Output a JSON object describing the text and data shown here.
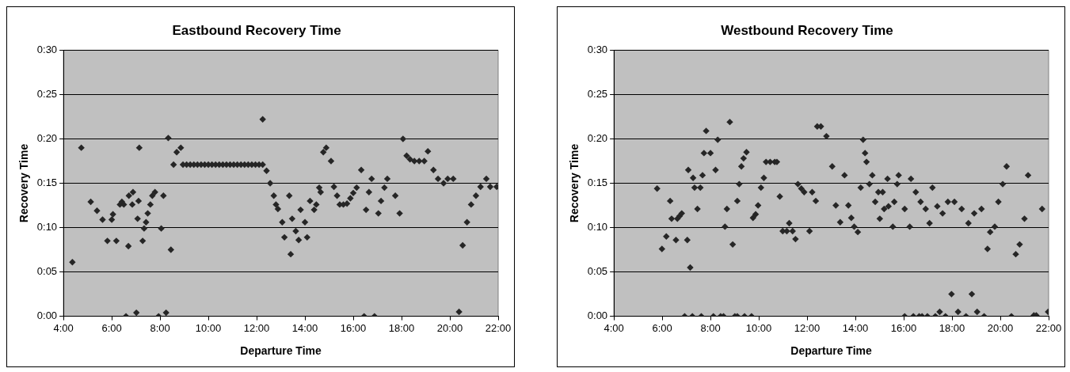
{
  "chart_data": [
    {
      "type": "scatter",
      "title": "Eastbound Recovery Time",
      "xlabel": "Departure Time",
      "ylabel": "Recovery Time",
      "marker": "diamond",
      "grid": "y",
      "legend": false,
      "xlim": [
        4,
        22
      ],
      "xticks": [
        {
          "value": 4,
          "label": "4:00"
        },
        {
          "value": 6,
          "label": "6:00"
        },
        {
          "value": 8,
          "label": "8:00"
        },
        {
          "value": 10,
          "label": "10:00"
        },
        {
          "value": 12,
          "label": "12:00"
        },
        {
          "value": 14,
          "label": "14:00"
        },
        {
          "value": 16,
          "label": "16:00"
        },
        {
          "value": 18,
          "label": "18:00"
        },
        {
          "value": 20,
          "label": "20:00"
        },
        {
          "value": 22,
          "label": "22:00"
        }
      ],
      "ylim": [
        0,
        30
      ],
      "yticks": [
        {
          "value": 0,
          "label": "0:00"
        },
        {
          "value": 5,
          "label": "0:05"
        },
        {
          "value": 10,
          "label": "0:10"
        },
        {
          "value": 15,
          "label": "0:15"
        },
        {
          "value": 20,
          "label": "0:20"
        },
        {
          "value": 25,
          "label": "0:25"
        },
        {
          "value": 30,
          "label": "0:30"
        }
      ],
      "series": [
        {
          "color": "#262626",
          "x": [
            4.37,
            4.74,
            5.13,
            5.39,
            5.62,
            5.82,
            6.0,
            6.05,
            6.19,
            6.34,
            6.42,
            6.5,
            6.59,
            6.69,
            6.71,
            6.88,
            6.85,
            7.02,
            7.07,
            7.11,
            7.14,
            7.28,
            7.34,
            7.42,
            7.49,
            7.6,
            7.68,
            7.79,
            7.94,
            8.05,
            8.14,
            8.25,
            8.34,
            8.45,
            8.56,
            8.69,
            8.86,
            8.95,
            9.1,
            9.25,
            9.4,
            9.55,
            9.7,
            9.85,
            10.0,
            10.15,
            10.3,
            10.45,
            10.6,
            10.75,
            10.9,
            11.05,
            11.2,
            11.35,
            11.5,
            11.65,
            11.8,
            11.95,
            12.1,
            12.25,
            12.25,
            12.41,
            12.56,
            12.71,
            12.8,
            12.88,
            13.06,
            13.15,
            13.35,
            13.41,
            13.47,
            13.62,
            13.74,
            13.82,
            14.0,
            14.09,
            14.21,
            14.38,
            14.47,
            14.59,
            14.65,
            14.76,
            14.88,
            15.08,
            15.2,
            15.33,
            15.44,
            15.59,
            15.74,
            15.88,
            16.0,
            16.14,
            16.33,
            16.45,
            16.53,
            16.65,
            16.76,
            16.88,
            17.04,
            17.15,
            17.29,
            17.41,
            17.74,
            17.92,
            18.06,
            18.21,
            18.35,
            18.53,
            18.73,
            18.94,
            19.09,
            19.32,
            19.51,
            19.74,
            19.91,
            20.14,
            20.38,
            20.53,
            20.71,
            20.88,
            21.08,
            21.27,
            21.51,
            21.67,
            21.94
          ],
          "values": [
            6.1,
            19,
            12.9,
            11.9,
            10.9,
            8.5,
            10.9,
            11.5,
            8.5,
            12.6,
            12.9,
            12.6,
            0,
            7.9,
            13.6,
            14.0,
            12.6,
            0.4,
            11.0,
            13.0,
            19,
            8.5,
            9.9,
            10.6,
            11.6,
            12.6,
            13.6,
            14.0,
            0,
            9.9,
            13.6,
            0.4,
            20.1,
            7.5,
            17.1,
            18.5,
            19,
            17.1,
            17.1,
            17.1,
            17.1,
            17.1,
            17.1,
            17.1,
            17.1,
            17.1,
            17.1,
            17.1,
            17.1,
            17.1,
            17.1,
            17.1,
            17.1,
            17.1,
            17.1,
            17.1,
            17.1,
            17.1,
            17.1,
            17.1,
            22.2,
            16.4,
            15.0,
            13.6,
            12.6,
            12.1,
            10.6,
            8.9,
            13.6,
            7.0,
            11.0,
            9.6,
            8.6,
            12.0,
            10.6,
            8.9,
            13.0,
            12.0,
            12.6,
            14.5,
            14.0,
            18.5,
            19.0,
            17.5,
            14.6,
            13.6,
            12.6,
            12.6,
            12.7,
            13.3,
            13.9,
            14.5,
            16.5,
            0,
            12.0,
            14.0,
            15.5,
            0,
            11.6,
            13.0,
            14.5,
            15.5,
            13.6,
            11.6,
            20.0,
            18.1,
            17.7,
            17.5,
            17.5,
            17.5,
            18.6,
            16.5,
            15.5,
            15.0,
            15.5,
            15.5,
            0.5,
            8.0,
            10.6,
            12.6,
            13.6,
            14.6,
            15.5,
            14.6,
            14.6
          ]
        }
      ]
    },
    {
      "type": "scatter",
      "title": "Westbound Recovery Time",
      "xlabel": "Departure Time",
      "ylabel": "Recovery Time",
      "marker": "diamond",
      "grid": "y",
      "legend": false,
      "xlim": [
        4,
        22
      ],
      "xticks": [
        {
          "value": 4,
          "label": "4:00"
        },
        {
          "value": 6,
          "label": "6:00"
        },
        {
          "value": 8,
          "label": "8:00"
        },
        {
          "value": 10,
          "label": "10:00"
        },
        {
          "value": 12,
          "label": "12:00"
        },
        {
          "value": 14,
          "label": "14:00"
        },
        {
          "value": 16,
          "label": "16:00"
        },
        {
          "value": 18,
          "label": "18:00"
        },
        {
          "value": 20,
          "label": "20:00"
        },
        {
          "value": 22,
          "label": "22:00"
        }
      ],
      "ylim": [
        0,
        30
      ],
      "yticks": [
        {
          "value": 0,
          "label": "0:00"
        },
        {
          "value": 5,
          "label": "0:05"
        },
        {
          "value": 10,
          "label": "0:10"
        },
        {
          "value": 15,
          "label": "0:15"
        },
        {
          "value": 20,
          "label": "0:20"
        },
        {
          "value": 25,
          "label": "0:25"
        },
        {
          "value": 30,
          "label": "0:30"
        }
      ],
      "series": [
        {
          "color": "#262626",
          "x": [
            5.79,
            5.99,
            6.17,
            6.33,
            6.39,
            6.57,
            6.63,
            6.72,
            6.81,
            6.93,
            7.04,
            7.08,
            7.16,
            7.25,
            7.28,
            7.34,
            7.46,
            7.58,
            7.62,
            7.67,
            7.73,
            7.82,
            8.0,
            8.12,
            8.21,
            8.3,
            8.42,
            8.54,
            8.6,
            8.68,
            8.8,
            8.92,
            9.01,
            9.11,
            9.11,
            9.19,
            9.28,
            9.37,
            9.41,
            9.49,
            9.7,
            9.76,
            9.87,
            9.97,
            10.09,
            10.21,
            10.3,
            10.47,
            10.66,
            10.75,
            10.87,
            10.99,
            11.16,
            11.26,
            11.4,
            11.52,
            11.62,
            11.76,
            11.88,
            12.1,
            12.21,
            12.36,
            12.42,
            12.57,
            12.8,
            13.04,
            13.19,
            13.37,
            13.55,
            13.71,
            13.83,
            13.95,
            14.1,
            14.22,
            14.32,
            14.4,
            14.46,
            14.58,
            14.7,
            14.82,
            14.95,
            15.01,
            15.13,
            15.19,
            15.33,
            15.37,
            15.55,
            15.61,
            15.73,
            15.79,
            16.04,
            16.04,
            16.25,
            16.3,
            16.4,
            16.5,
            16.64,
            16.7,
            16.76,
            16.91,
            16.98,
            17.07,
            17.19,
            17.31,
            17.39,
            17.49,
            17.61,
            17.73,
            17.83,
            17.98,
            18.1,
            18.25,
            18.4,
            18.58,
            18.68,
            18.82,
            18.92,
            19.04,
            19.22,
            19.33,
            19.47,
            19.58,
            19.77,
            19.92,
            20.1,
            20.26,
            20.46,
            20.64,
            20.8,
            21.0,
            21.15,
            21.39,
            21.49,
            21.73,
            21.98
          ],
          "values": [
            14.4,
            7.6,
            9.0,
            13.0,
            11.0,
            8.6,
            11.0,
            11.3,
            11.6,
            0,
            8.6,
            16.5,
            5.5,
            0,
            15.6,
            14.5,
            12.1,
            14.5,
            0,
            15.9,
            18.4,
            20.9,
            18.4,
            0,
            16.5,
            19.9,
            0,
            0,
            10.1,
            12.1,
            21.9,
            8.1,
            0,
            13.0,
            0,
            14.9,
            16.9,
            17.8,
            0,
            18.5,
            0,
            11.1,
            11.5,
            12.5,
            14.5,
            15.6,
            17.4,
            17.4,
            17.4,
            17.4,
            13.5,
            9.6,
            9.6,
            10.5,
            9.6,
            8.7,
            14.9,
            14.4,
            14.0,
            9.6,
            14.0,
            13.0,
            21.4,
            21.4,
            20.3,
            16.9,
            12.5,
            10.6,
            15.9,
            12.5,
            11.1,
            10.1,
            9.5,
            14.5,
            19.9,
            18.4,
            17.4,
            14.9,
            15.9,
            12.9,
            14.0,
            11.0,
            14.0,
            12.1,
            15.5,
            12.4,
            10.1,
            12.9,
            14.9,
            15.9,
            12.1,
            0,
            10.1,
            15.5,
            0,
            14.0,
            0,
            12.9,
            0,
            12.1,
            0,
            10.5,
            14.5,
            0,
            12.4,
            0.5,
            11.6,
            0,
            12.9,
            2.5,
            12.9,
            0.5,
            12.1,
            0,
            10.5,
            2.5,
            11.6,
            0.5,
            12.1,
            0,
            7.6,
            9.5,
            10.1,
            12.9,
            14.9,
            16.9,
            0,
            7.0,
            8.1,
            11.0,
            15.9,
            0.1,
            0.1,
            12.1,
            0.5
          ]
        }
      ]
    }
  ]
}
